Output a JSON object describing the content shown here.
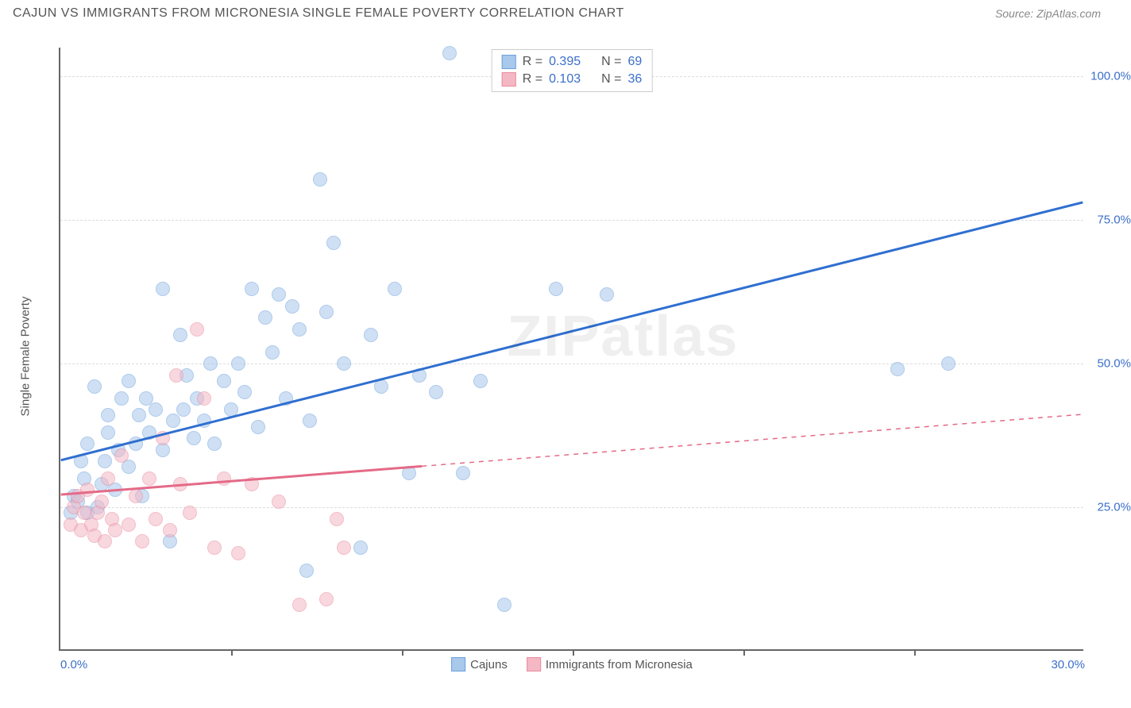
{
  "header": {
    "title": "CAJUN VS IMMIGRANTS FROM MICRONESIA SINGLE FEMALE POVERTY CORRELATION CHART",
    "source": "Source: ZipAtlas.com"
  },
  "watermark": "ZIPatlas",
  "chart": {
    "type": "scatter",
    "ylabel": "Single Female Poverty",
    "xlim": [
      0,
      30
    ],
    "ylim": [
      0,
      105
    ],
    "xtick_labels": [
      "0.0%",
      "30.0%"
    ],
    "xtick_positions": [
      0,
      30
    ],
    "xtick_minor": [
      5,
      10,
      15,
      20,
      25
    ],
    "ytick_labels": [
      "25.0%",
      "50.0%",
      "75.0%",
      "100.0%"
    ],
    "ytick_positions": [
      25,
      50,
      75,
      100
    ],
    "grid_color": "#dddddd",
    "axis_color": "#666666",
    "background_color": "#ffffff",
    "tick_label_color": "#3b6fc9",
    "series": [
      {
        "name": "Cajuns",
        "fill": "#a8c8ec",
        "stroke": "#6ea0db",
        "fill_opacity": 0.55,
        "marker_radius": 9,
        "trend": {
          "color": "#2f6fd0",
          "width": 3,
          "y_at_x0": 33,
          "y_at_x30": 78,
          "solid_until_x": 30
        },
        "R": "0.395",
        "N": "69",
        "points": [
          [
            0.3,
            24
          ],
          [
            0.4,
            27
          ],
          [
            0.5,
            26
          ],
          [
            0.6,
            33
          ],
          [
            0.7,
            30
          ],
          [
            0.8,
            24
          ],
          [
            0.8,
            36
          ],
          [
            1.0,
            46
          ],
          [
            1.1,
            25
          ],
          [
            1.2,
            29
          ],
          [
            1.3,
            33
          ],
          [
            1.4,
            38
          ],
          [
            1.4,
            41
          ],
          [
            1.6,
            28
          ],
          [
            1.7,
            35
          ],
          [
            1.8,
            44
          ],
          [
            2.0,
            32
          ],
          [
            2.0,
            47
          ],
          [
            2.2,
            36
          ],
          [
            2.3,
            41
          ],
          [
            2.4,
            27
          ],
          [
            2.5,
            44
          ],
          [
            2.6,
            38
          ],
          [
            2.8,
            42
          ],
          [
            3.0,
            35
          ],
          [
            3.0,
            63
          ],
          [
            3.2,
            19
          ],
          [
            3.3,
            40
          ],
          [
            3.5,
            55
          ],
          [
            3.6,
            42
          ],
          [
            3.7,
            48
          ],
          [
            3.9,
            37
          ],
          [
            4.0,
            44
          ],
          [
            4.2,
            40
          ],
          [
            4.4,
            50
          ],
          [
            4.5,
            36
          ],
          [
            4.8,
            47
          ],
          [
            5.0,
            42
          ],
          [
            5.2,
            50
          ],
          [
            5.4,
            45
          ],
          [
            5.6,
            63
          ],
          [
            5.8,
            39
          ],
          [
            6.0,
            58
          ],
          [
            6.2,
            52
          ],
          [
            6.4,
            62
          ],
          [
            6.6,
            44
          ],
          [
            6.8,
            60
          ],
          [
            7.0,
            56
          ],
          [
            7.2,
            14
          ],
          [
            7.3,
            40
          ],
          [
            7.6,
            82
          ],
          [
            7.8,
            59
          ],
          [
            8.0,
            71
          ],
          [
            8.3,
            50
          ],
          [
            8.8,
            18
          ],
          [
            9.1,
            55
          ],
          [
            9.4,
            46
          ],
          [
            9.8,
            63
          ],
          [
            10.2,
            31
          ],
          [
            10.5,
            48
          ],
          [
            11.0,
            45
          ],
          [
            11.4,
            104
          ],
          [
            11.8,
            31
          ],
          [
            12.3,
            47
          ],
          [
            13.0,
            8
          ],
          [
            14.5,
            63
          ],
          [
            16.0,
            62
          ],
          [
            24.5,
            49
          ],
          [
            26.0,
            50
          ]
        ]
      },
      {
        "name": "Immigrants from Micronesia",
        "fill": "#f4b8c4",
        "stroke": "#e88aa0",
        "fill_opacity": 0.55,
        "marker_radius": 9,
        "trend": {
          "color": "#e46a87",
          "width": 3,
          "y_at_x0": 27,
          "y_at_x30": 41,
          "solid_until_x": 10.6
        },
        "R": "0.103",
        "N": "36",
        "points": [
          [
            0.3,
            22
          ],
          [
            0.4,
            25
          ],
          [
            0.5,
            27
          ],
          [
            0.6,
            21
          ],
          [
            0.7,
            24
          ],
          [
            0.8,
            28
          ],
          [
            0.9,
            22
          ],
          [
            1.0,
            20
          ],
          [
            1.1,
            24
          ],
          [
            1.2,
            26
          ],
          [
            1.3,
            19
          ],
          [
            1.4,
            30
          ],
          [
            1.5,
            23
          ],
          [
            1.6,
            21
          ],
          [
            1.8,
            34
          ],
          [
            2.0,
            22
          ],
          [
            2.2,
            27
          ],
          [
            2.4,
            19
          ],
          [
            2.6,
            30
          ],
          [
            2.8,
            23
          ],
          [
            3.0,
            37
          ],
          [
            3.2,
            21
          ],
          [
            3.4,
            48
          ],
          [
            3.5,
            29
          ],
          [
            3.8,
            24
          ],
          [
            4.0,
            56
          ],
          [
            4.2,
            44
          ],
          [
            4.5,
            18
          ],
          [
            4.8,
            30
          ],
          [
            5.2,
            17
          ],
          [
            5.6,
            29
          ],
          [
            6.4,
            26
          ],
          [
            7.0,
            8
          ],
          [
            7.8,
            9
          ],
          [
            8.1,
            23
          ],
          [
            8.3,
            18
          ]
        ]
      }
    ],
    "stats_legend": {
      "rows": [
        {
          "swatch_fill": "#a8c8ec",
          "swatch_stroke": "#6ea0db",
          "R": "0.395",
          "N": "69"
        },
        {
          "swatch_fill": "#f4b8c4",
          "swatch_stroke": "#e88aa0",
          "R": "0.103",
          "N": "36"
        }
      ]
    },
    "bottom_legend": [
      {
        "swatch_fill": "#a8c8ec",
        "swatch_stroke": "#6ea0db",
        "label": "Cajuns"
      },
      {
        "swatch_fill": "#f4b8c4",
        "swatch_stroke": "#e88aa0",
        "label": "Immigrants from Micronesia"
      }
    ]
  }
}
